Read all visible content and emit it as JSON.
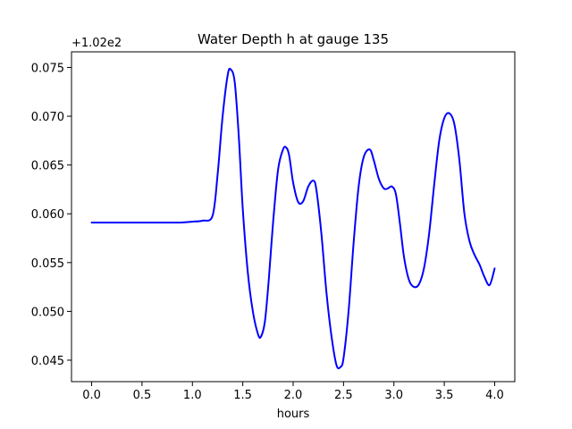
{
  "chart_data": {
    "type": "line",
    "title": "Water Depth h at gauge 135",
    "xlabel": "hours",
    "ylabel": "",
    "y_offset_label": "+1.02e2",
    "xlim": [
      -0.2,
      4.2
    ],
    "ylim": [
      0.0428,
      0.0766
    ],
    "x_ticks": [
      0.0,
      0.5,
      1.0,
      1.5,
      2.0,
      2.5,
      3.0,
      3.5,
      4.0
    ],
    "x_tick_labels": [
      "0.0",
      "0.5",
      "1.0",
      "1.5",
      "2.0",
      "2.5",
      "3.0",
      "3.5",
      "4.0"
    ],
    "y_ticks": [
      0.045,
      0.05,
      0.055,
      0.06,
      0.065,
      0.07,
      0.075
    ],
    "y_tick_labels": [
      "0.045",
      "0.050",
      "0.055",
      "0.060",
      "0.065",
      "0.070",
      "0.075"
    ],
    "grid": false,
    "series": [
      {
        "color": "#0000ff",
        "x": [
          0.0,
          0.25,
          0.5,
          0.75,
          0.9,
          1.0,
          1.1,
          1.2,
          1.25,
          1.3,
          1.35,
          1.38,
          1.42,
          1.46,
          1.5,
          1.55,
          1.6,
          1.65,
          1.68,
          1.72,
          1.76,
          1.8,
          1.85,
          1.9,
          1.93,
          1.96,
          2.0,
          2.05,
          2.1,
          2.15,
          2.2,
          2.23,
          2.28,
          2.33,
          2.38,
          2.43,
          2.47,
          2.5,
          2.55,
          2.6,
          2.65,
          2.7,
          2.76,
          2.8,
          2.85,
          2.9,
          2.94,
          2.98,
          3.02,
          3.06,
          3.1,
          3.15,
          3.2,
          3.25,
          3.3,
          3.35,
          3.4,
          3.45,
          3.5,
          3.55,
          3.6,
          3.65,
          3.7,
          3.75,
          3.8,
          3.85,
          3.9,
          3.95,
          4.0
        ],
        "y": [
          0.0591,
          0.0591,
          0.0591,
          0.0591,
          0.05912,
          0.0592,
          0.0593,
          0.0598,
          0.064,
          0.07,
          0.0742,
          0.0748,
          0.0735,
          0.068,
          0.0605,
          0.054,
          0.05,
          0.0477,
          0.0474,
          0.049,
          0.0535,
          0.059,
          0.0645,
          0.0666,
          0.0668,
          0.066,
          0.0632,
          0.0612,
          0.0613,
          0.0628,
          0.0634,
          0.0625,
          0.058,
          0.052,
          0.0475,
          0.0445,
          0.0443,
          0.0452,
          0.05,
          0.057,
          0.0628,
          0.0658,
          0.0666,
          0.0655,
          0.0636,
          0.0626,
          0.0626,
          0.0628,
          0.062,
          0.059,
          0.0556,
          0.0532,
          0.0525,
          0.0528,
          0.0545,
          0.058,
          0.063,
          0.0675,
          0.0698,
          0.0703,
          0.0692,
          0.0655,
          0.06,
          0.0572,
          0.0558,
          0.0548,
          0.0535,
          0.0527,
          0.0544
        ]
      }
    ]
  }
}
